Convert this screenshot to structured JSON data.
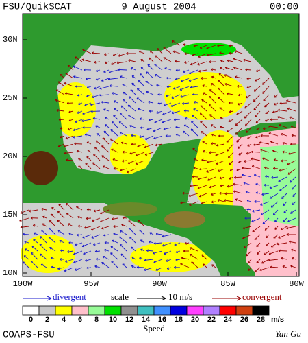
{
  "header": {
    "title": "FSU/QuikSCAT",
    "date": "9 August 2004",
    "time": "00:00"
  },
  "map": {
    "lat_labels": [
      "30N",
      "25N",
      "20N",
      "15N",
      "10N"
    ],
    "lon_labels": [
      "100W",
      "95W",
      "90W",
      "85W",
      "80W"
    ]
  },
  "legend": {
    "divergent": "divergent",
    "scale": "scale",
    "scale_value": "10 m/s",
    "convergent": "convergent",
    "speed_label": "Speed",
    "units": "m/s",
    "ticks": [
      0,
      2,
      4,
      6,
      8,
      10,
      12,
      14,
      16,
      18,
      20,
      22,
      24,
      26,
      28
    ],
    "colors": [
      "#ffffff",
      "#c8c8c8",
      "#ffff00",
      "#ffc0cb",
      "#98fb98",
      "#00e000",
      "#909090",
      "#40c0c0",
      "#4090ff",
      "#0000e0",
      "#ff40ff",
      "#b080ff",
      "#ff0000",
      "#d04010",
      "#000000"
    ]
  },
  "footer": {
    "left": "COAPS-FSU",
    "right": "Yan Gu"
  }
}
